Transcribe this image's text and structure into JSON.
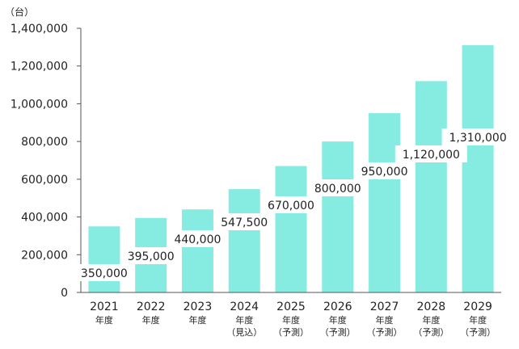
{
  "chart_data": {
    "type": "bar",
    "unit_label": "（台）",
    "categories": [
      {
        "year": "2021",
        "sub1": "年度",
        "sub2": ""
      },
      {
        "year": "2022",
        "sub1": "年度",
        "sub2": ""
      },
      {
        "year": "2023",
        "sub1": "年度",
        "sub2": ""
      },
      {
        "year": "2024",
        "sub1": "年度",
        "sub2": "（見込）"
      },
      {
        "year": "2025",
        "sub1": "年度",
        "sub2": "（予測）"
      },
      {
        "year": "2026",
        "sub1": "年度",
        "sub2": "（予測）"
      },
      {
        "year": "2027",
        "sub1": "年度",
        "sub2": "（予測）"
      },
      {
        "year": "2028",
        "sub1": "年度",
        "sub2": "（予測）"
      },
      {
        "year": "2029",
        "sub1": "年度",
        "sub2": "（予測）"
      }
    ],
    "values": [
      350000,
      395000,
      440000,
      547500,
      670000,
      800000,
      950000,
      1120000,
      1310000
    ],
    "value_labels": [
      "350,000",
      "395,000",
      "440,000",
      "547,500",
      "670,000",
      "800,000",
      "950,000",
      "1,120,000",
      "1,310,000"
    ],
    "yticks": [
      {
        "value": 0,
        "label": "0"
      },
      {
        "value": 200000,
        "label": "200,000"
      },
      {
        "value": 400000,
        "label": "400,000"
      },
      {
        "value": 600000,
        "label": "600,000"
      },
      {
        "value": 800000,
        "label": "800,000"
      },
      {
        "value": 1000000,
        "label": "1,000,000"
      },
      {
        "value": 1200000,
        "label": "1,200,000"
      },
      {
        "value": 1400000,
        "label": "1,400,000"
      }
    ],
    "ylim": [
      0,
      1400000
    ],
    "grid": false,
    "bar_color": "#86ebe1",
    "axis_color": "#555555"
  }
}
